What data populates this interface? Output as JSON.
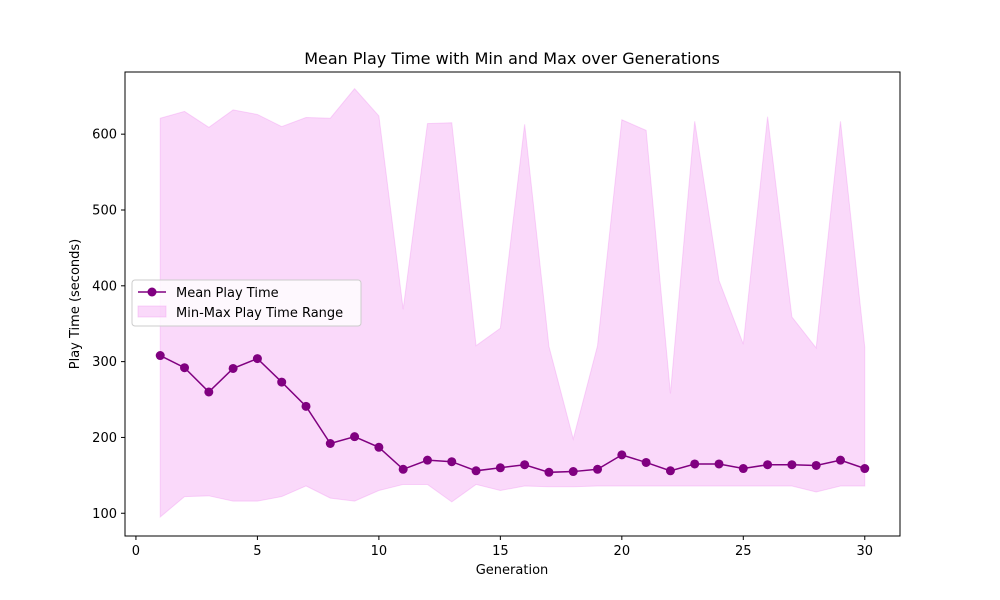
{
  "chart_data": {
    "type": "line",
    "title": "Mean Play Time with Min and Max over Generations",
    "xlabel": "Generation",
    "ylabel": "Play Time (seconds)",
    "xlim": [
      -0.45,
      31.45
    ],
    "ylim": [
      70,
      682
    ],
    "xticks": [
      0,
      5,
      10,
      15,
      20,
      25,
      30
    ],
    "yticks": [
      100,
      200,
      300,
      400,
      500,
      600
    ],
    "grid": false,
    "legend_position": "center-left",
    "x": [
      1,
      2,
      3,
      4,
      5,
      6,
      7,
      8,
      9,
      10,
      11,
      12,
      13,
      14,
      15,
      16,
      17,
      18,
      19,
      20,
      21,
      22,
      23,
      24,
      25,
      26,
      27,
      28,
      29,
      30
    ],
    "series": [
      {
        "name": "Mean Play Time",
        "kind": "line",
        "color": "#800080",
        "marker": "circle",
        "values": [
          308,
          292,
          260,
          291,
          304,
          273,
          241,
          192,
          201,
          187,
          158,
          170,
          168,
          156,
          160,
          164,
          154,
          155,
          158,
          177,
          167,
          156,
          165,
          165,
          159,
          164,
          164,
          163,
          170,
          159
        ]
      },
      {
        "name": "Min-Max Play Time Range",
        "kind": "band",
        "color": "#ee82ee",
        "opacity": 0.3,
        "min": [
          95,
          122,
          123,
          116,
          116,
          122,
          136,
          120,
          116,
          130,
          138,
          138,
          115,
          138,
          130,
          136,
          135,
          135,
          136,
          136,
          136,
          136,
          136,
          136,
          136,
          136,
          136,
          128,
          136,
          136
        ],
        "max": [
          621,
          630,
          609,
          632,
          626,
          610,
          622,
          621,
          660,
          624,
          369,
          614,
          615,
          321,
          344,
          613,
          320,
          198,
          321,
          619,
          605,
          258,
          617,
          407,
          323,
          623,
          359,
          318,
          617,
          319
        ]
      }
    ]
  }
}
